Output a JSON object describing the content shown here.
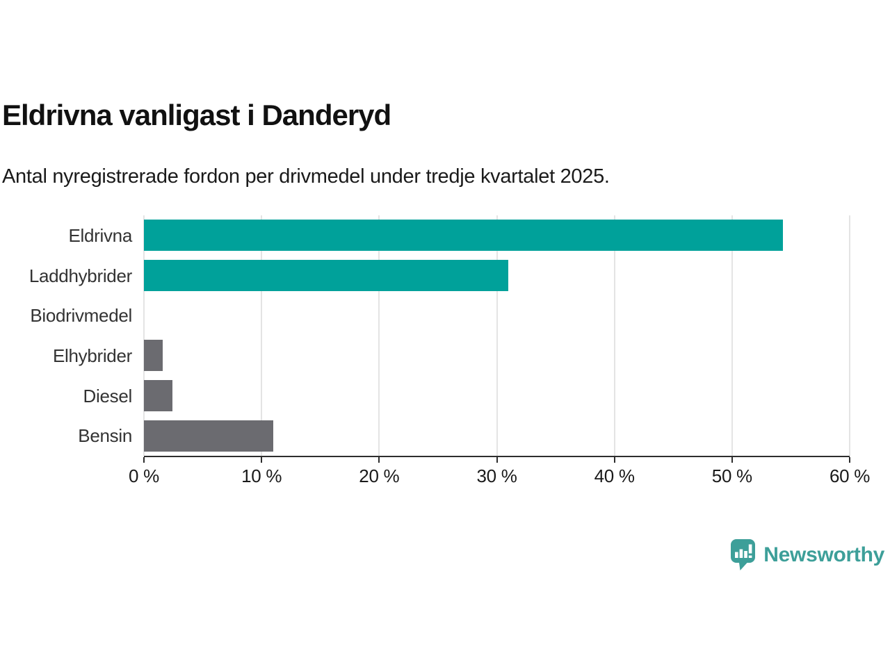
{
  "header": {
    "title": "Eldrivna vanligast i Danderyd",
    "subtitle": "Antal nyregistrerade fordon per drivmedel under tredje kvartalet 2025."
  },
  "chart_data": {
    "type": "bar",
    "orientation": "horizontal",
    "title": "Eldrivna vanligast i Danderyd",
    "subtitle": "Antal nyregistrerade fordon per drivmedel under tredje kvartalet 2025.",
    "categories": [
      "Eldrivna",
      "Laddhybrider",
      "Biodrivmedel",
      "Elhybrider",
      "Diesel",
      "Bensin"
    ],
    "values": [
      54.3,
      31,
      0,
      1.6,
      2.4,
      11
    ],
    "unit": "%",
    "bar_colors": [
      "#00a19a",
      "#00a19a",
      "#6b6b70",
      "#6b6b70",
      "#6b6b70",
      "#6b6b70"
    ],
    "xlabel": "",
    "ylabel": "",
    "xlim": [
      0,
      60
    ],
    "x_ticks": [
      0,
      10,
      20,
      30,
      40,
      50,
      60
    ],
    "x_tick_labels": [
      "0 %",
      "10 %",
      "20 %",
      "30 %",
      "40 %",
      "50 %",
      "60 %"
    ],
    "grid": "vertical-gridlines-on",
    "legend": "none"
  },
  "branding": {
    "logo_text": "Newsworthy",
    "logo_color": "#3d9f99",
    "icon": "newsworthy-speech-bubble-bar-chart-icon"
  },
  "colors": {
    "accent_teal": "#00a19a",
    "neutral_gray": "#6b6b70",
    "gridline": "#e4e4e4",
    "axis": "#2d2d2d",
    "title_text": "#111111",
    "label_text": "#333333",
    "background": "#ffffff"
  }
}
